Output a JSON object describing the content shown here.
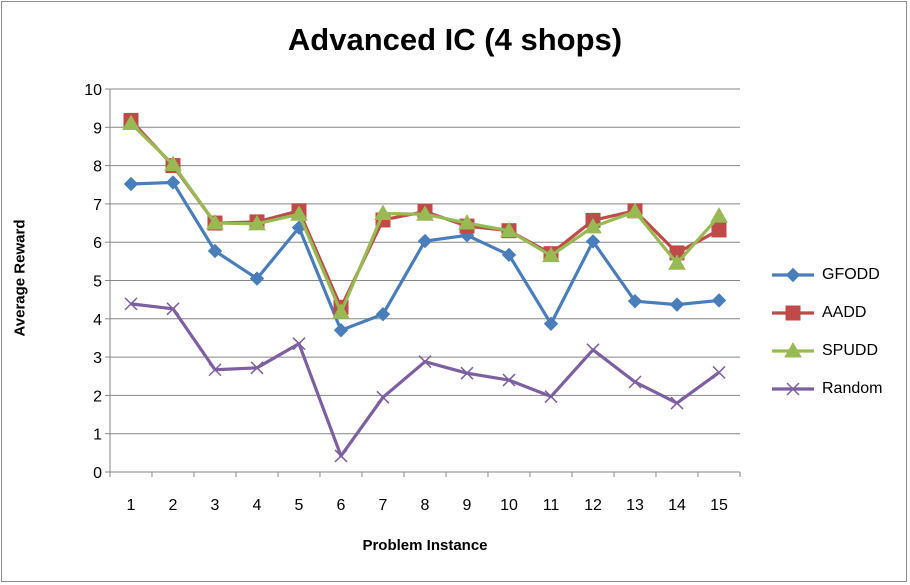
{
  "chart_data": {
    "type": "line",
    "title": "Advanced IC (4 shops)",
    "xlabel": "Problem Instance",
    "ylabel": "Average Reward",
    "categories": [
      "1",
      "2",
      "3",
      "4",
      "5",
      "6",
      "7",
      "8",
      "9",
      "10",
      "11",
      "12",
      "13",
      "14",
      "15"
    ],
    "ylim": [
      0,
      10
    ],
    "yticks": [
      0,
      1,
      2,
      3,
      4,
      5,
      6,
      7,
      8,
      9,
      10
    ],
    "grid": true,
    "legend_position": "right",
    "series": [
      {
        "name": "GFODD",
        "color": "#4a7ebb",
        "marker": "diamond",
        "values": [
          7.52,
          7.56,
          5.77,
          5.05,
          6.38,
          3.7,
          4.12,
          6.03,
          6.18,
          5.67,
          3.87,
          6.02,
          4.46,
          4.37,
          4.48
        ]
      },
      {
        "name": "AADD",
        "color": "#be4b48",
        "marker": "square",
        "values": [
          9.18,
          8.0,
          6.5,
          6.53,
          6.82,
          4.3,
          6.58,
          6.8,
          6.42,
          6.3,
          5.7,
          6.57,
          6.82,
          5.72,
          6.32
        ]
      },
      {
        "name": "SPUDD",
        "color": "#98b954",
        "marker": "triangle",
        "values": [
          9.1,
          8.03,
          6.5,
          6.48,
          6.73,
          4.17,
          6.75,
          6.73,
          6.5,
          6.3,
          5.65,
          6.4,
          6.8,
          5.45,
          6.68
        ]
      },
      {
        "name": "Random",
        "color": "#7d60a0",
        "marker": "x",
        "values": [
          4.39,
          4.26,
          2.67,
          2.72,
          3.35,
          0.42,
          1.95,
          2.88,
          2.58,
          2.4,
          1.97,
          3.19,
          2.35,
          1.8,
          2.6
        ]
      }
    ]
  }
}
